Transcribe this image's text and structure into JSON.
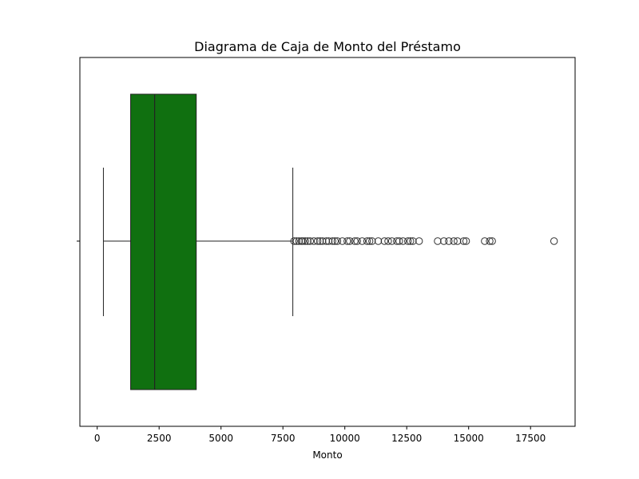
{
  "chart_data": {
    "type": "box",
    "title": "Diagrama de Caja de Monto del Préstamo",
    "xlabel": "Monto",
    "ylabel": "",
    "orientation": "horizontal",
    "xlim": [
      -700,
      19300
    ],
    "xticks": [
      0,
      2500,
      5000,
      7500,
      10000,
      12500,
      15000,
      17500
    ],
    "xtick_labels": [
      "0",
      "2500",
      "5000",
      "7500",
      "10000",
      "12500",
      "15000",
      "17500"
    ],
    "grid": false,
    "box": {
      "whisker_low": 250,
      "q1": 1350,
      "median": 2320,
      "q3": 4000,
      "whisker_high": 7900,
      "fill_color": "#107010",
      "line_color": "#222222"
    },
    "outliers": [
      7950,
      8050,
      8150,
      8250,
      8300,
      8400,
      8500,
      8600,
      8750,
      8900,
      9000,
      9100,
      9250,
      9350,
      9500,
      9600,
      9700,
      9900,
      10100,
      10200,
      10400,
      10500,
      10700,
      10900,
      11000,
      11100,
      11350,
      11600,
      11750,
      11900,
      12100,
      12200,
      12350,
      12550,
      12650,
      12750,
      13000,
      13750,
      14000,
      14200,
      14400,
      14550,
      14800,
      14900,
      15650,
      15850,
      15950,
      18450
    ]
  }
}
